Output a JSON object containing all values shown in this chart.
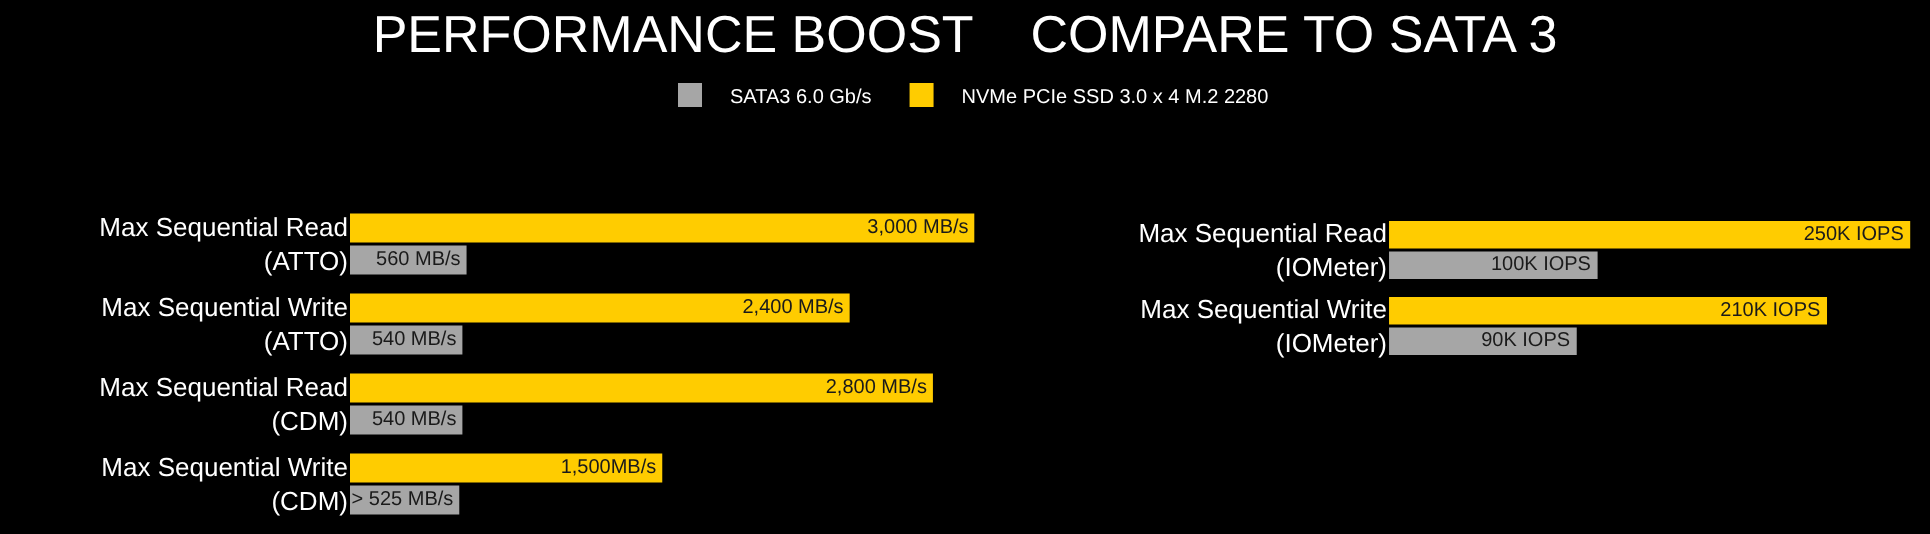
{
  "chart_data": [
    {
      "type": "bar",
      "title": "PERFORMANCE BOOST    COMPARE TO SATA 3",
      "orientation": "horizontal",
      "legend": "top",
      "grid": false,
      "tick_labels": "y",
      "xlim": [
        0,
        3000
      ],
      "categories": [
        "Max Sequential Read\n(ATTO)",
        "Max Sequential Write\n(ATTO)",
        "Max Sequential Read\n(CDM)",
        "Max Sequential Write\n(CDM)"
      ],
      "series": [
        {
          "name": "SATA3 6.0 Gb/s",
          "color": "#a6a6a6",
          "values": [
            560,
            540,
            540,
            525
          ],
          "value_labels": [
            "560 MB/s",
            "540 MB/s",
            "540 MB/s",
            "> 525 MB/s"
          ]
        },
        {
          "name": "NVMe PCIe SSD 3.0 x 4 M.2 2280",
          "color": "#ffcc00",
          "values": [
            3000,
            2400,
            2800,
            1500
          ],
          "value_labels": [
            "3,000 MB/s",
            "2,400 MB/s",
            "2,800 MB/s",
            "1,500MB/s"
          ]
        }
      ]
    },
    {
      "type": "bar",
      "orientation": "horizontal",
      "grid": false,
      "tick_labels": "y",
      "xlim": [
        0,
        250000
      ],
      "categories": [
        "Max Sequential Read\n(IOMeter)",
        "Max Sequential Write\n(IOMeter)"
      ],
      "series": [
        {
          "color": "#a6a6a6",
          "values": [
            100000,
            90000
          ],
          "value_labels": [
            "100K IOPS",
            "90K IOPS"
          ]
        },
        {
          "color": "#ffcc00",
          "values": [
            250000,
            210000
          ],
          "value_labels": [
            "250K IOPS",
            "210K IOPS"
          ]
        }
      ]
    }
  ]
}
